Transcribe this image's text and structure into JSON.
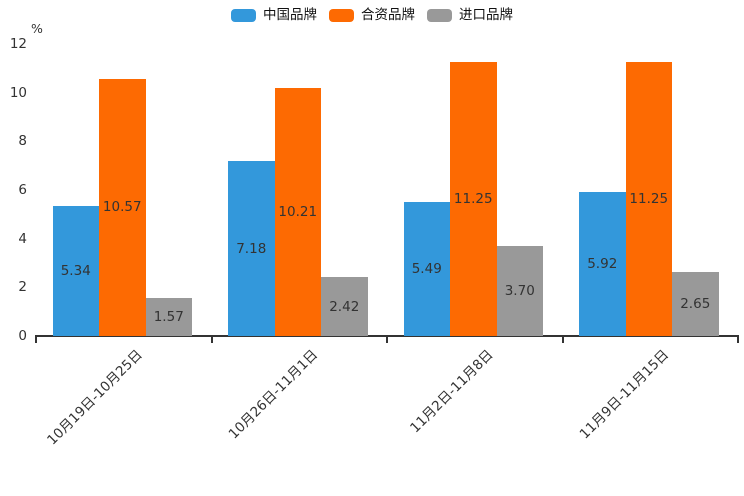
{
  "chart_data": {
    "type": "bar",
    "title": "",
    "ylabel": "%",
    "xlabel": "",
    "ylim": [
      0,
      12
    ],
    "yticks": [
      0,
      2,
      4,
      6,
      8,
      10,
      12
    ],
    "grid": false,
    "legend_position": "top-center",
    "categories": [
      "10月19日-10月25日",
      "10月26日-11月1日",
      "11月2日-11月8日",
      "11月9日-11月15日"
    ],
    "series": [
      {
        "name": "中国品牌",
        "color": "#3398db",
        "values": [
          5.34,
          7.18,
          5.49,
          5.92
        ]
      },
      {
        "name": "合资品牌",
        "color": "#fd6a02",
        "values": [
          10.57,
          10.21,
          11.25,
          11.25
        ]
      },
      {
        "name": "进口品牌",
        "color": "#999999",
        "values": [
          1.57,
          2.42,
          3.7,
          2.65
        ]
      }
    ],
    "value_label_decimals": 2,
    "colors": {
      "axis": "#333333",
      "tick_label": "#333333",
      "value_label": "#333333",
      "legend_text": "#111111",
      "background": "#ffffff"
    }
  }
}
